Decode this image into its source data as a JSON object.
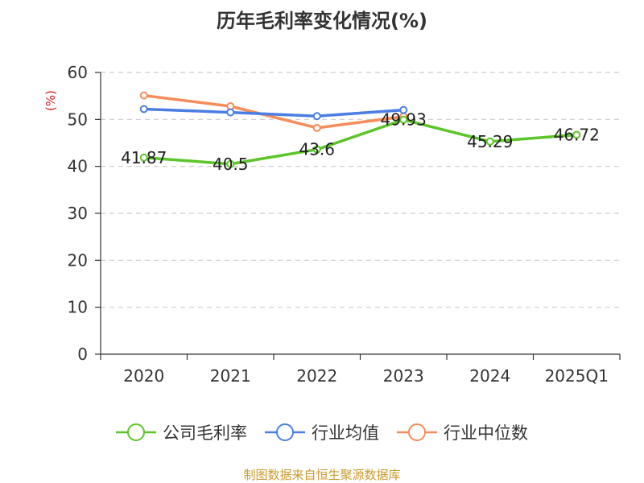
{
  "chart_data": {
    "type": "line",
    "title": "历年毛利率变化情况(%)",
    "ylabel": "(%)",
    "xlabel": "",
    "categories": [
      "2020",
      "2021",
      "2022",
      "2023",
      "2024",
      "2025Q1"
    ],
    "ylim": [
      0,
      60
    ],
    "yticks": [
      0,
      10,
      20,
      30,
      40,
      50,
      60
    ],
    "grid": true,
    "legend_position": "bottom",
    "series": [
      {
        "name": "公司毛利率",
        "color": "#5cc52a",
        "values": [
          41.87,
          40.5,
          43.6,
          49.93,
          45.29,
          46.72
        ],
        "labels": [
          "41.87",
          "40.5",
          "43.6",
          "49.93",
          "45.29",
          "46.72"
        ]
      },
      {
        "name": "行业均值",
        "color": "#4a7ee3",
        "values": [
          52.2,
          51.5,
          50.7,
          52.0,
          null,
          null
        ]
      },
      {
        "name": "行业中位数",
        "color": "#f68c5a",
        "values": [
          55.1,
          52.8,
          48.2,
          50.6,
          null,
          null
        ]
      }
    ]
  },
  "footer": {
    "source": "制图数据来自恒生聚源数据库",
    "source_color": "#c99a2e"
  },
  "colors": {
    "ylabel": "#d42020",
    "axis": "#333333",
    "grid": "#cccccc"
  }
}
